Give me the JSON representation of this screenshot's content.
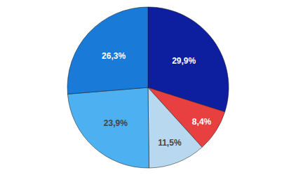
{
  "chart_data": {
    "type": "pie",
    "values": [
      29.9,
      8.4,
      11.5,
      23.9,
      26.3
    ],
    "value_labels": [
      "29,9%",
      "8,4%",
      "11,5%",
      "23,9%",
      "26,3%"
    ],
    "colors": [
      "#0d1f9e",
      "#e84040",
      "#b8d8f0",
      "#4db0f0",
      "#1a7ad8"
    ],
    "data_labels": true
  }
}
